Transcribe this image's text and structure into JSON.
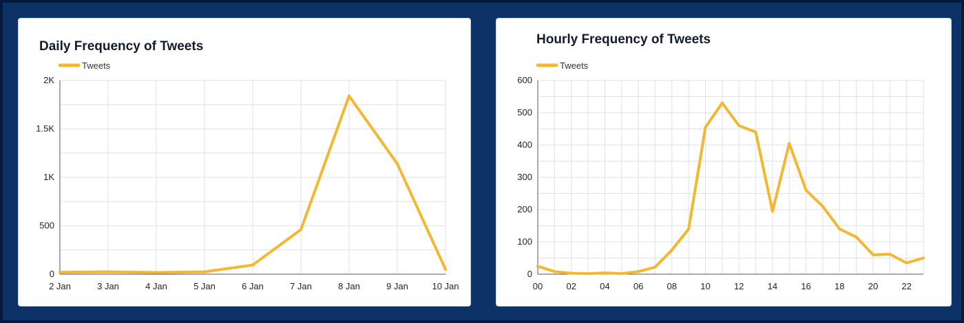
{
  "colors": {
    "background": "#0d3268",
    "panel": "#ffffff",
    "series": "#f4b731",
    "grid": "#e1e1e1"
  },
  "chart_data": [
    {
      "type": "line",
      "title": "Daily Frequency of Tweets",
      "legend": {
        "position": "top-left",
        "entries": [
          "Tweets"
        ]
      },
      "grid": true,
      "xlabel": "",
      "ylabel": "",
      "categories": [
        "2 Jan",
        "3 Jan",
        "4 Jan",
        "5 Jan",
        "6 Jan",
        "7 Jan",
        "8 Jan",
        "9 Jan",
        "10 Jan"
      ],
      "series": [
        {
          "name": "Tweets",
          "values": [
            20,
            25,
            18,
            25,
            95,
            460,
            1840,
            1140,
            50
          ]
        }
      ],
      "ylim": [
        0,
        2000
      ],
      "yticks": [
        0,
        500,
        1000,
        1500,
        2000
      ],
      "ytick_labels": [
        "0",
        "500",
        "1K",
        "1.5K",
        "2K"
      ]
    },
    {
      "type": "line",
      "title": "Hourly Frequency of Tweets",
      "legend": {
        "position": "top-left",
        "entries": [
          "Tweets"
        ]
      },
      "grid": true,
      "xlabel": "",
      "ylabel": "",
      "categories": [
        "00",
        "01",
        "02",
        "03",
        "04",
        "05",
        "06",
        "07",
        "08",
        "09",
        "10",
        "11",
        "12",
        "13",
        "14",
        "15",
        "16",
        "17",
        "18",
        "19",
        "20",
        "21",
        "22",
        "23"
      ],
      "xtick_labels": [
        "00",
        "02",
        "04",
        "06",
        "08",
        "10",
        "12",
        "14",
        "16",
        "18",
        "20",
        "22"
      ],
      "series": [
        {
          "name": "Tweets",
          "values": [
            25,
            8,
            3,
            2,
            4,
            2,
            8,
            22,
            75,
            140,
            455,
            530,
            460,
            440,
            195,
            405,
            260,
            210,
            140,
            115,
            60,
            62,
            35,
            50
          ]
        }
      ],
      "ylim": [
        0,
        600
      ],
      "yticks": [
        0,
        100,
        200,
        300,
        400,
        500,
        600
      ],
      "ytick_labels": [
        "0",
        "100",
        "200",
        "300",
        "400",
        "500",
        "600"
      ]
    }
  ]
}
